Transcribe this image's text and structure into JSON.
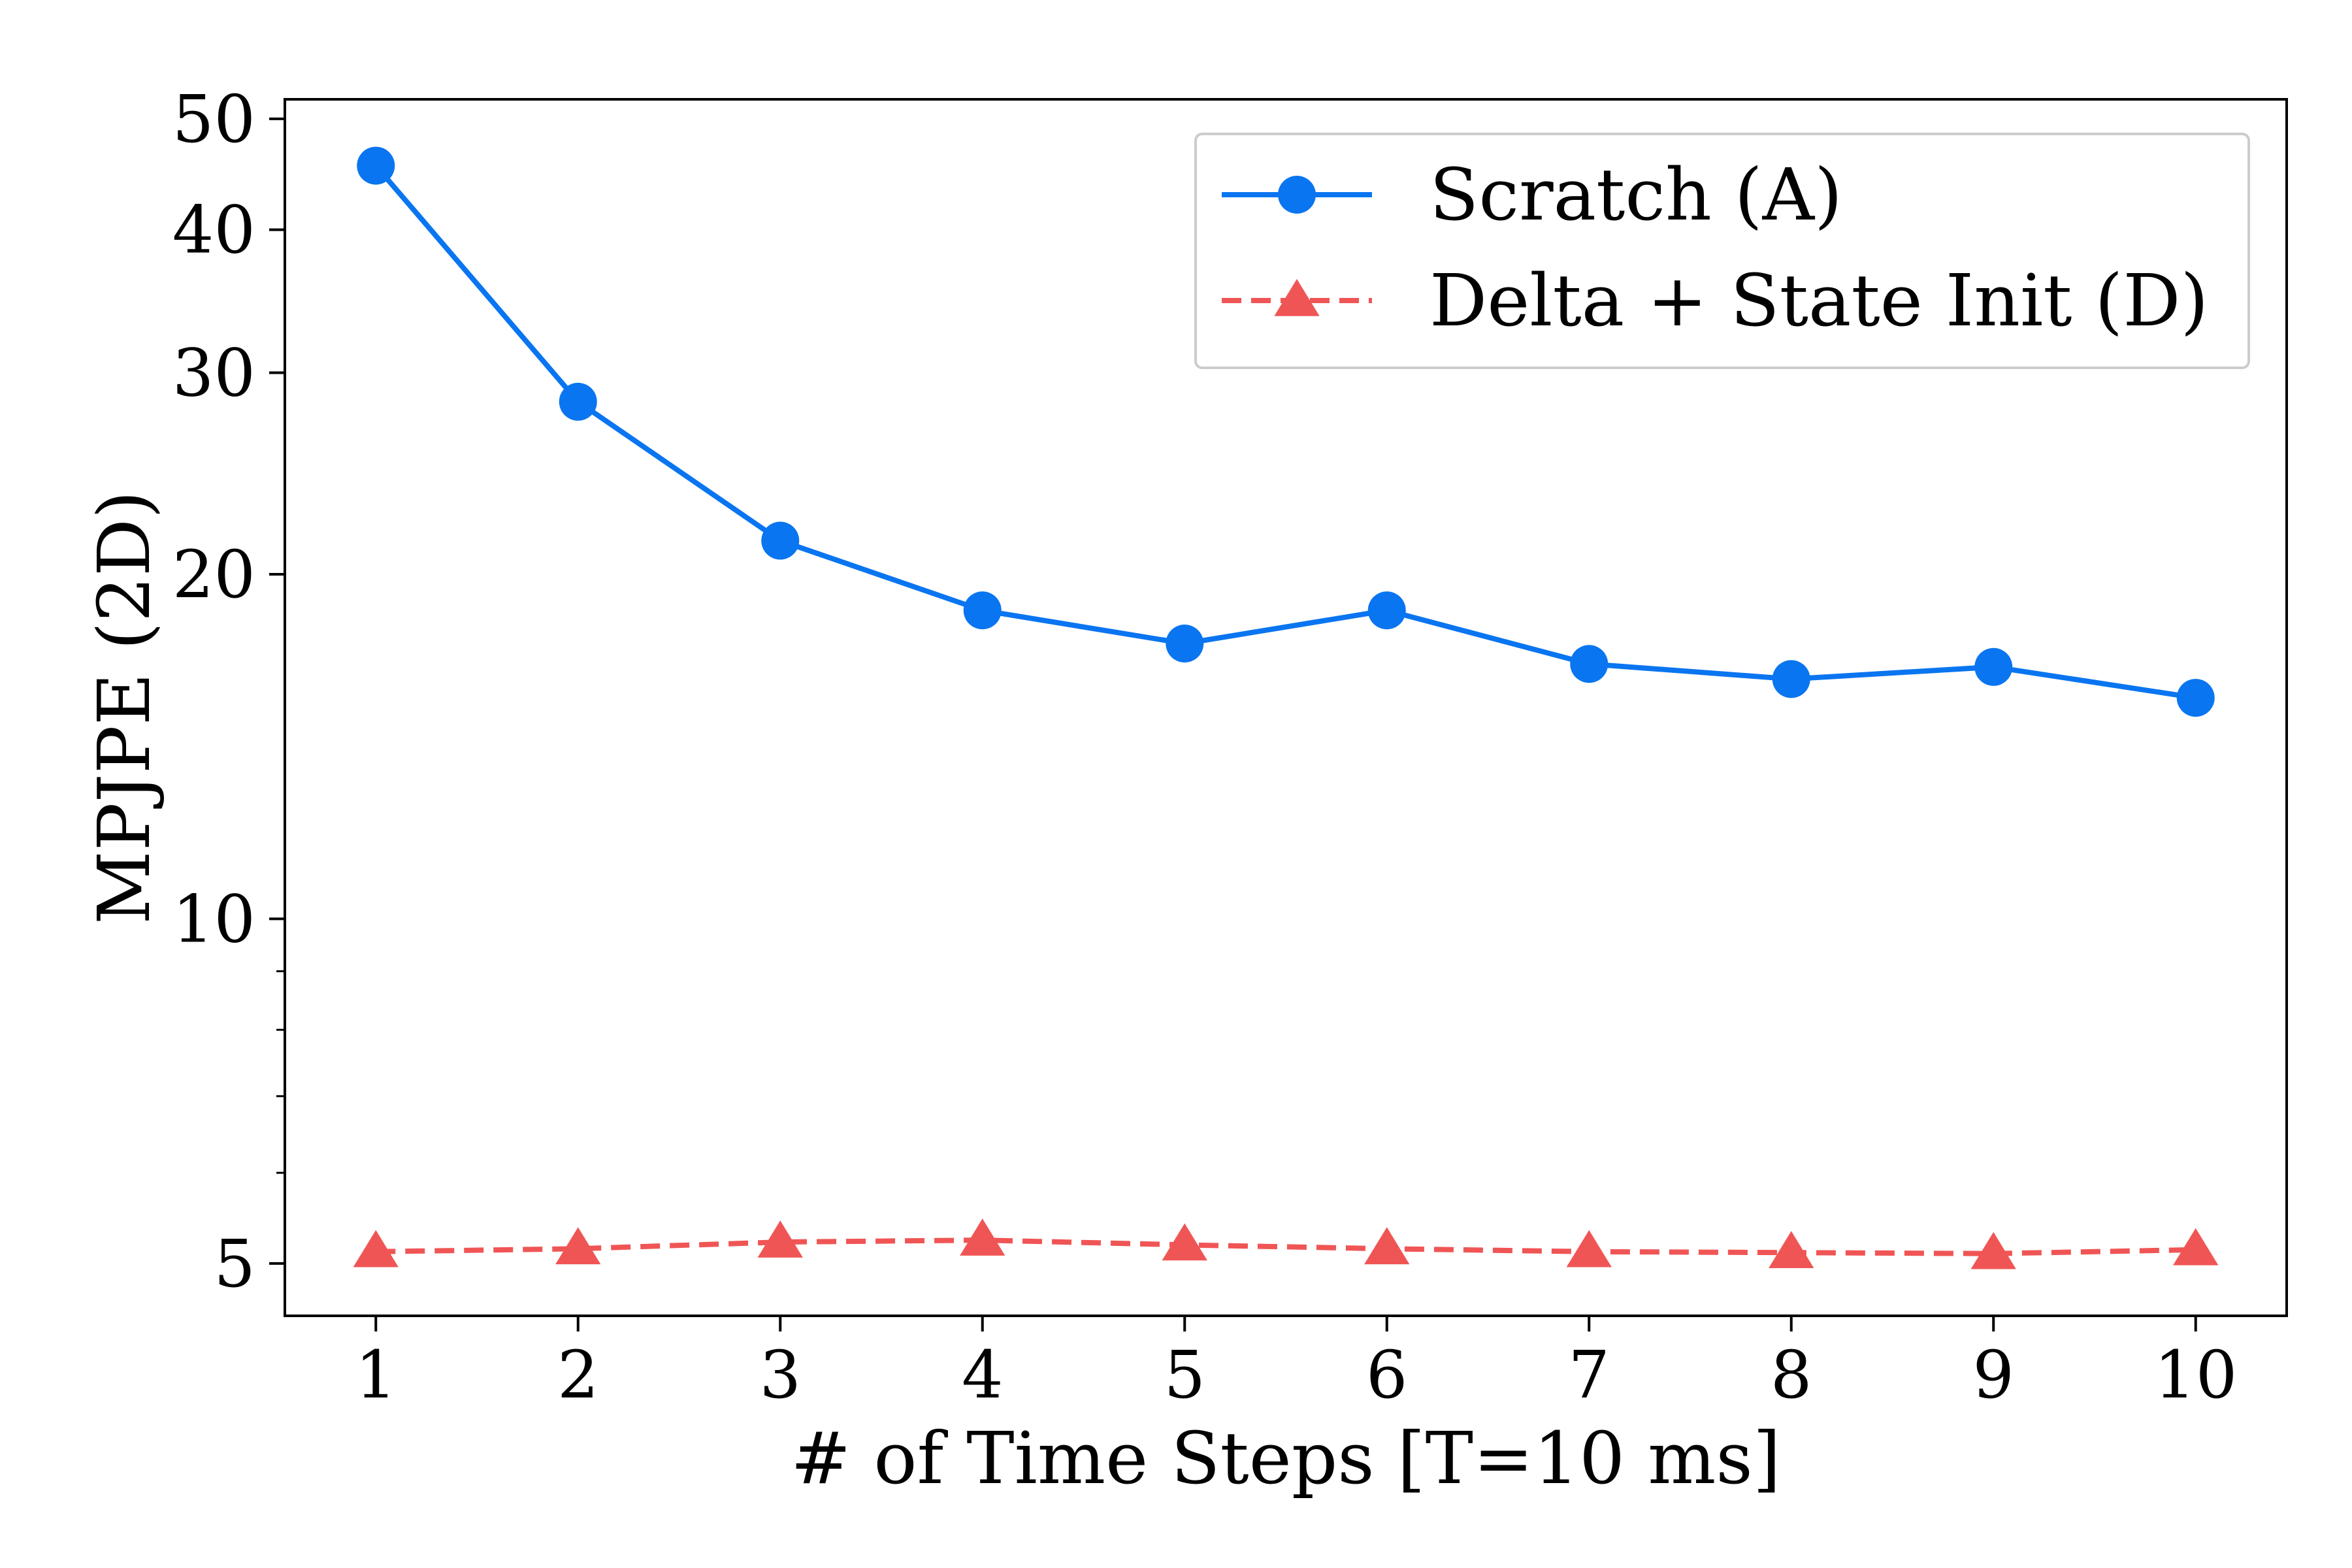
{
  "chart_data": {
    "type": "line",
    "title": "",
    "xlabel": "# of Time Steps [T=10 ms]",
    "ylabel": "MPJPE (2D)",
    "x": [
      1,
      2,
      3,
      4,
      5,
      6,
      7,
      8,
      9,
      10
    ],
    "x_tick_labels": [
      "1",
      "2",
      "3",
      "4",
      "5",
      "6",
      "7",
      "8",
      "9",
      "10"
    ],
    "y_scale": "log",
    "y_ticks": [
      5,
      10,
      20,
      30,
      40,
      50
    ],
    "y_tick_labels": [
      "5",
      "10",
      "20",
      "30",
      "40",
      "50"
    ],
    "xlim": [
      0.55,
      10.45
    ],
    "ylim": [
      4.5,
      52
    ],
    "grid": false,
    "legend_position": "top-right",
    "series": [
      {
        "name": "Scratch (A)",
        "color": "#0a75f0",
        "line_style": "solid",
        "marker": "circle",
        "values": [
          45.5,
          28.3,
          21.4,
          18.6,
          17.4,
          18.6,
          16.7,
          16.2,
          16.6,
          15.6
        ]
      },
      {
        "name": "Delta + State Init (D)",
        "color": "#f05555",
        "line_style": "dashed",
        "marker": "triangle",
        "values": [
          5.12,
          5.15,
          5.22,
          5.24,
          5.19,
          5.15,
          5.12,
          5.11,
          5.1,
          5.14
        ]
      }
    ]
  }
}
